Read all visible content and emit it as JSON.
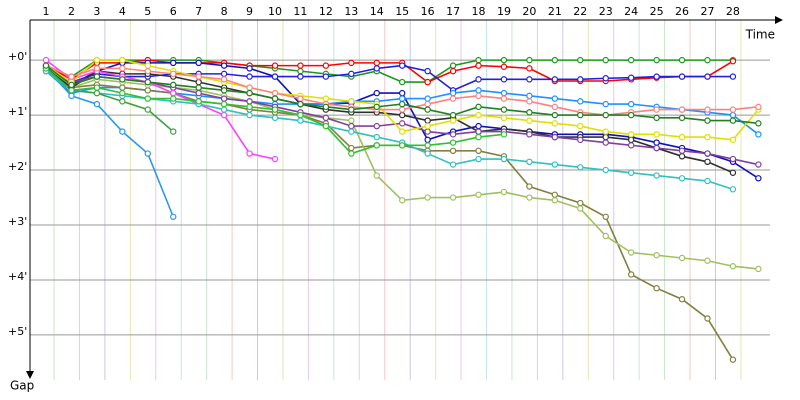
{
  "chart_data": {
    "type": "line",
    "x_label": "Time",
    "y_label": "Gap",
    "x": [
      1,
      2,
      3,
      4,
      5,
      6,
      7,
      8,
      9,
      10,
      11,
      12,
      13,
      14,
      15,
      16,
      17,
      18,
      19,
      20,
      21,
      22,
      23,
      24,
      25,
      26,
      27,
      28,
      29
    ],
    "xlim": [
      0.37,
      29.3
    ],
    "xticks": [
      1,
      2,
      3,
      4,
      5,
      6,
      7,
      8,
      9,
      10,
      11,
      12,
      13,
      14,
      15,
      16,
      17,
      18,
      19,
      20,
      21,
      22,
      23,
      24,
      25,
      26,
      27,
      28
    ],
    "ylim": [
      -0.73,
      5.82
    ],
    "yticks": [
      {
        "value": 0,
        "label": "+0'"
      },
      {
        "value": 1,
        "label": "+1'"
      },
      {
        "value": 2,
        "label": "+2'"
      },
      {
        "value": 3,
        "label": "+3'"
      },
      {
        "value": 4,
        "label": "+4'"
      },
      {
        "value": 5,
        "label": "+5'"
      }
    ],
    "grid": true,
    "series": [
      {
        "color": "#1a9a1a",
        "values": [
          0.1,
          0.3,
          0.0,
          0.0,
          0.0,
          0.0,
          0.0,
          0.05,
          0.1,
          0.15,
          0.2,
          0.25,
          0.3,
          0.2,
          0.4,
          0.4,
          0.1,
          0.0,
          0.0,
          0.0,
          0.0,
          0.0,
          0.0,
          0.0,
          0.0,
          0.0,
          0.0,
          0.0,
          null
        ]
      },
      {
        "color": "#ff0000",
        "values": [
          0.1,
          0.35,
          0.05,
          0.05,
          0.0,
          0.05,
          0.05,
          0.05,
          0.1,
          0.1,
          0.1,
          0.1,
          0.05,
          0.05,
          0.05,
          0.4,
          0.2,
          0.1,
          0.12,
          0.15,
          0.38,
          0.38,
          0.38,
          0.35,
          0.32,
          0.3,
          0.3,
          0.02,
          null
        ]
      },
      {
        "color": "#1010c0",
        "values": [
          0.12,
          0.45,
          0.2,
          0.05,
          0.05,
          0.05,
          0.05,
          0.1,
          0.15,
          0.3,
          0.8,
          0.8,
          0.78,
          0.6,
          0.6,
          1.45,
          1.3,
          1.2,
          1.25,
          1.3,
          1.35,
          1.35,
          1.35,
          1.4,
          1.5,
          1.6,
          1.7,
          1.85,
          2.15
        ]
      },
      {
        "color": "#2020e0",
        "values": [
          0.15,
          0.4,
          0.25,
          0.3,
          0.3,
          0.25,
          0.25,
          0.25,
          0.3,
          0.3,
          0.3,
          0.3,
          0.25,
          0.15,
          0.1,
          0.2,
          0.55,
          0.35,
          0.35,
          0.35,
          0.35,
          0.35,
          0.33,
          0.32,
          0.3,
          0.3,
          0.3,
          0.3,
          null
        ]
      },
      {
        "color": "#1e90ff",
        "values": [
          0.2,
          0.6,
          0.5,
          0.5,
          0.55,
          0.6,
          0.65,
          0.7,
          0.75,
          0.8,
          0.8,
          0.8,
          0.75,
          0.75,
          0.7,
          0.7,
          0.6,
          0.55,
          0.6,
          0.65,
          0.7,
          0.75,
          0.8,
          0.8,
          0.85,
          0.9,
          0.95,
          1.0,
          1.35
        ]
      },
      {
        "color": "#2898e8",
        "values": [
          0.15,
          0.65,
          0.8,
          1.3,
          1.7,
          2.85,
          null,
          null,
          null,
          null,
          null,
          null,
          null,
          null,
          null,
          null,
          null,
          null,
          null,
          null,
          null,
          null,
          null,
          null,
          null,
          null,
          null,
          null,
          null
        ]
      },
      {
        "color": "#808040",
        "values": [
          0.2,
          0.5,
          0.45,
          0.5,
          0.55,
          0.6,
          0.75,
          0.8,
          0.9,
          0.95,
          1.0,
          1.15,
          1.6,
          1.55,
          1.55,
          1.65,
          1.65,
          1.65,
          1.75,
          2.3,
          2.45,
          2.6,
          2.85,
          3.9,
          4.15,
          4.35,
          4.7,
          5.45,
          null
        ]
      },
      {
        "color": "#a0c060",
        "values": [
          0.1,
          0.5,
          0.35,
          0.4,
          0.45,
          0.5,
          0.55,
          0.65,
          0.75,
          0.9,
          1.0,
          1.05,
          1.1,
          2.1,
          2.55,
          2.5,
          2.5,
          2.45,
          2.4,
          2.5,
          2.55,
          2.7,
          3.2,
          3.5,
          3.55,
          3.6,
          3.65,
          3.75,
          3.8
        ]
      },
      {
        "color": "#303030",
        "values": [
          0.15,
          0.5,
          0.2,
          0.25,
          0.25,
          0.3,
          0.4,
          0.5,
          0.6,
          0.7,
          0.8,
          0.9,
          0.95,
          0.95,
          1.0,
          1.1,
          1.05,
          1.3,
          1.25,
          1.3,
          1.4,
          1.4,
          1.4,
          1.45,
          1.6,
          1.75,
          1.85,
          2.05,
          null
        ]
      },
      {
        "color": "#8040a0",
        "values": [
          0.1,
          0.4,
          0.3,
          0.35,
          0.4,
          0.5,
          0.6,
          0.7,
          0.75,
          0.85,
          0.95,
          1.05,
          1.2,
          1.2,
          1.15,
          1.3,
          1.35,
          1.3,
          1.3,
          1.35,
          1.4,
          1.45,
          1.5,
          1.55,
          1.6,
          1.65,
          1.7,
          1.8,
          1.9
        ]
      },
      {
        "color": "#ff40ff",
        "values": [
          0.0,
          0.35,
          0.2,
          0.3,
          0.4,
          0.6,
          0.8,
          1.0,
          1.7,
          1.8,
          null,
          null,
          null,
          null,
          null,
          null,
          null,
          null,
          null,
          null,
          null,
          null,
          null,
          null,
          null,
          null,
          null,
          null,
          null
        ]
      },
      {
        "color": "#e0e000",
        "values": [
          0.1,
          0.4,
          0.0,
          0.0,
          0.1,
          0.2,
          0.3,
          0.4,
          0.5,
          0.6,
          0.65,
          0.7,
          0.75,
          0.8,
          1.3,
          1.2,
          1.1,
          1.0,
          1.05,
          1.1,
          1.15,
          1.2,
          1.3,
          1.35,
          1.35,
          1.4,
          1.4,
          1.45,
          0.9
        ]
      },
      {
        "color": "#30c0c0",
        "values": [
          0.2,
          0.55,
          0.6,
          0.65,
          0.7,
          0.75,
          0.8,
          0.9,
          1.0,
          1.05,
          1.1,
          1.2,
          1.3,
          1.4,
          1.5,
          1.7,
          1.9,
          1.8,
          1.8,
          1.85,
          1.9,
          1.95,
          2.0,
          2.05,
          2.1,
          2.15,
          2.2,
          2.35,
          null
        ]
      },
      {
        "color": "#ff8080",
        "values": [
          0.1,
          0.3,
          0.15,
          0.15,
          0.2,
          0.25,
          0.3,
          0.35,
          0.5,
          0.6,
          0.7,
          0.8,
          0.85,
          0.9,
          0.9,
          0.8,
          0.7,
          0.65,
          0.7,
          0.75,
          0.85,
          0.95,
          1.0,
          0.95,
          0.9,
          0.9,
          0.9,
          0.9,
          0.85
        ]
      },
      {
        "color": "#40a040",
        "values": [
          0.15,
          0.55,
          0.6,
          0.75,
          0.9,
          1.3,
          null,
          null,
          null,
          null,
          null,
          null,
          null,
          null,
          null,
          null,
          null,
          null,
          null,
          null,
          null,
          null,
          null,
          null,
          null,
          null,
          null,
          null,
          null
        ]
      },
      {
        "color": "#30c030",
        "values": [
          0.15,
          0.55,
          0.5,
          0.6,
          0.7,
          0.7,
          0.75,
          0.8,
          0.85,
          0.9,
          1.0,
          1.2,
          1.7,
          1.55,
          1.55,
          1.55,
          1.5,
          1.4,
          1.35,
          null,
          null,
          null,
          null,
          null,
          null,
          null,
          null,
          null,
          null
        ]
      },
      {
        "color": "#208020",
        "values": [
          0.1,
          0.45,
          0.3,
          0.35,
          0.4,
          0.45,
          0.5,
          0.55,
          0.6,
          0.7,
          0.8,
          0.85,
          0.9,
          0.85,
          0.8,
          0.9,
          1.0,
          0.85,
          0.9,
          0.95,
          1.0,
          1.0,
          1.0,
          1.0,
          1.05,
          1.05,
          1.1,
          1.1,
          1.15
        ]
      }
    ]
  }
}
